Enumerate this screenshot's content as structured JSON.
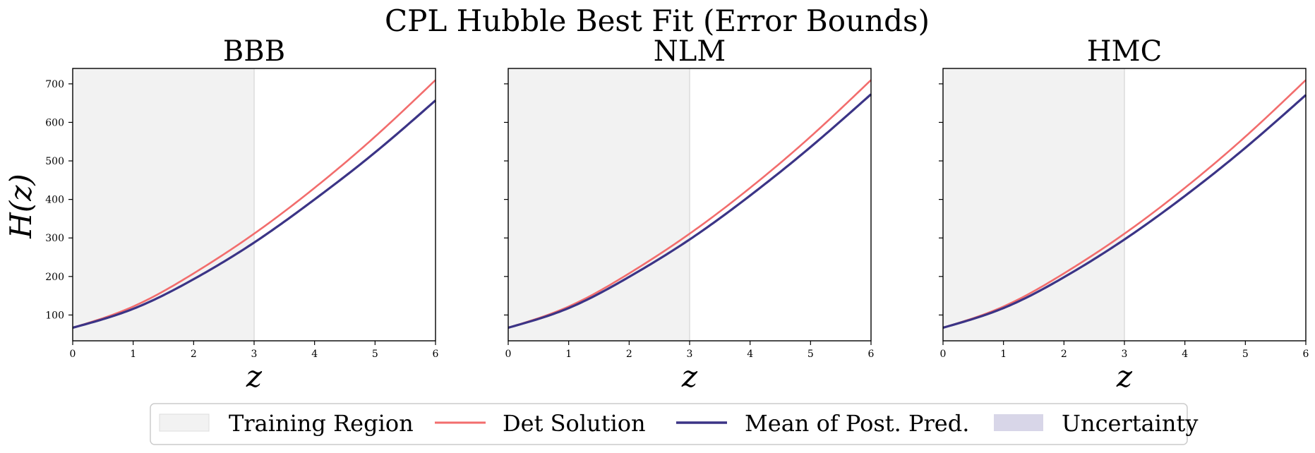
{
  "chart_data": {
    "type": "line",
    "title": "CPL Hubble Best Fit (Error Bounds)",
    "ylabel": "H(z)",
    "xlabel": "z",
    "xlim": [
      0,
      6
    ],
    "ylim": [
      33,
      740
    ],
    "xticks": [
      0,
      1,
      2,
      3,
      4,
      5,
      6
    ],
    "yticks": [
      100,
      200,
      300,
      400,
      500,
      600,
      700
    ],
    "training_region": [
      0,
      3
    ],
    "legend_position": "bottom-center",
    "colors": {
      "training_region": "#f2f2f2",
      "det_solution": "#f26d6d",
      "mean_post_pred": "#3b3486",
      "uncertainty": "#d8d6e8"
    },
    "legend": [
      "Training Region",
      "Det Solution",
      "Mean of Post. Pred.",
      "Uncertainty"
    ],
    "panels": [
      {
        "title": "BBB",
        "x": [
          0,
          1,
          2,
          3,
          4,
          5,
          6
        ],
        "series": [
          {
            "name": "Det Solution",
            "values": [
              67,
              122,
              208,
              311,
              430,
              563,
              710
            ]
          },
          {
            "name": "Mean of Post. Pred.",
            "values": [
              67,
              116,
              193,
              288,
              400,
              522,
              657
            ]
          }
        ]
      },
      {
        "title": "NLM",
        "x": [
          0,
          1,
          2,
          3,
          4,
          5,
          6
        ],
        "series": [
          {
            "name": "Det Solution",
            "values": [
              67,
              122,
              208,
              311,
              430,
              563,
              710
            ]
          },
          {
            "name": "Mean of Post. Pred.",
            "values": [
              67,
              118,
              199,
              296,
              410,
              536,
              673
            ]
          }
        ]
      },
      {
        "title": "HMC",
        "x": [
          0,
          1,
          2,
          3,
          4,
          5,
          6
        ],
        "series": [
          {
            "name": "Det Solution",
            "values": [
              67,
              122,
              208,
              311,
              430,
              563,
              710
            ]
          },
          {
            "name": "Mean of Post. Pred.",
            "values": [
              67,
              118,
              198,
              296,
              409,
              534,
              671
            ]
          }
        ]
      }
    ]
  }
}
